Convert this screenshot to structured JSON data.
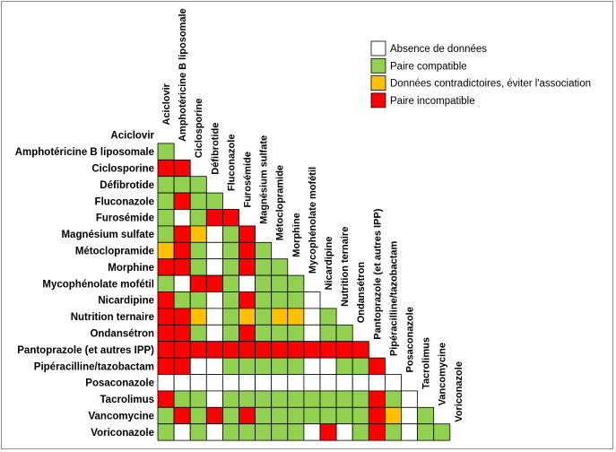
{
  "legend": {
    "items": [
      {
        "key": "N",
        "label": "Absence de données",
        "color": "#ffffff"
      },
      {
        "key": "G",
        "label": "Paire compatible",
        "color": "#92d050"
      },
      {
        "key": "Y",
        "label": "Données contradictoires, éviter l'association",
        "color": "#ffc000"
      },
      {
        "key": "R",
        "label": "Paire incompatible",
        "color": "#ff0000"
      }
    ]
  },
  "drugs": [
    "Aciclovir",
    "Amphotéricine B liposomale",
    "Ciclosporine",
    "Défibrotide",
    "Fluconazole",
    "Furosémide",
    "Magnésium sulfate",
    "Métoclopramide",
    "Morphine",
    "Mycophénolate mofétil",
    "Nicardipine",
    "Nutrition ternaire",
    "Ondansétron",
    "Pantoprazole (et autres IPP)",
    "Pipéracilline/tazobactam",
    "Posaconazole",
    "Tacrolimus",
    "Vancomycine",
    "Voriconazole"
  ],
  "matrix": [
    [],
    [
      "G"
    ],
    [
      "R",
      "R"
    ],
    [
      "G",
      "G",
      "G"
    ],
    [
      "G",
      "R",
      "G",
      "G"
    ],
    [
      "G",
      "N",
      "G",
      "R",
      "R"
    ],
    [
      "G",
      "R",
      "Y",
      "N",
      "G",
      "R"
    ],
    [
      "Y",
      "R",
      "G",
      "N",
      "G",
      "R",
      "G"
    ],
    [
      "R",
      "R",
      "G",
      "N",
      "G",
      "R",
      "G",
      "G"
    ],
    [
      "G",
      "N",
      "R",
      "R",
      "G",
      "N",
      "G",
      "G",
      "G"
    ],
    [
      "R",
      "G",
      "G",
      "N",
      "G",
      "R",
      "G",
      "G",
      "G",
      "N"
    ],
    [
      "R",
      "R",
      "Y",
      "N",
      "G",
      "Y",
      "G",
      "Y",
      "Y",
      "N",
      "G"
    ],
    [
      "R",
      "R",
      "G",
      "N",
      "G",
      "R",
      "G",
      "G",
      "G",
      "N",
      "G",
      "G"
    ],
    [
      "R",
      "R",
      "R",
      "R",
      "R",
      "R",
      "R",
      "R",
      "R",
      "R",
      "R",
      "R",
      "R"
    ],
    [
      "R",
      "R",
      "N",
      "N",
      "G",
      "G",
      "G",
      "G",
      "G",
      "N",
      "N",
      "G",
      "G",
      "R"
    ],
    [
      "N",
      "N",
      "N",
      "N",
      "N",
      "N",
      "N",
      "N",
      "N",
      "N",
      "N",
      "N",
      "N",
      "N",
      "N"
    ],
    [
      "R",
      "G",
      "G",
      "N",
      "G",
      "G",
      "G",
      "G",
      "G",
      "G",
      "G",
      "G",
      "G",
      "R",
      "G",
      "N"
    ],
    [
      "G",
      "R",
      "G",
      "R",
      "G",
      "R",
      "G",
      "G",
      "G",
      "G",
      "G",
      "G",
      "G",
      "R",
      "Y",
      "N",
      "G"
    ],
    [
      "G",
      "N",
      "G",
      "N",
      "G",
      "G",
      "G",
      "G",
      "G",
      "N",
      "R",
      "N",
      "G",
      "R",
      "G",
      "N",
      "G",
      "G"
    ]
  ]
}
